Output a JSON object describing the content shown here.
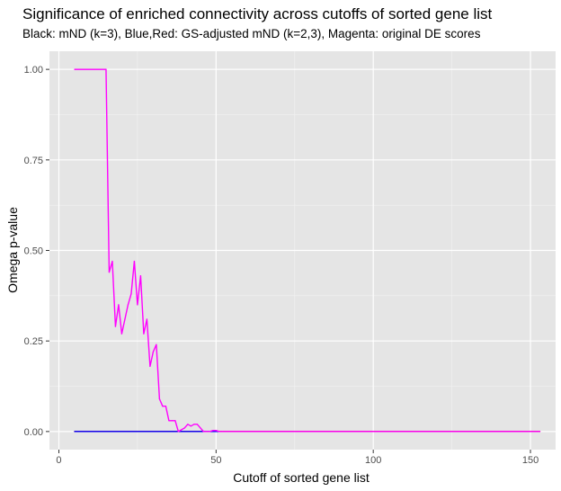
{
  "chart_data": {
    "type": "line",
    "title": "Significance of enriched connectivity across cutoffs of sorted gene list",
    "subtitle": "Black: mND (k=3), Blue,Red: GS-adjusted mND (k=2,3), Magenta: original DE scores",
    "xlabel": "Cutoff of sorted gene list",
    "ylabel": "Omega p-value",
    "xlim": [
      -3,
      158
    ],
    "ylim": [
      -0.05,
      1.05
    ],
    "xticks": [
      0,
      50,
      100,
      150
    ],
    "xtick_labels": [
      "0",
      "50",
      "100",
      "150"
    ],
    "yticks": [
      0,
      0.25,
      0.5,
      0.75,
      1.0
    ],
    "ytick_labels": [
      "0.00",
      "0.25",
      "0.50",
      "0.75",
      "1.00"
    ],
    "grid": true,
    "background": "#e5e5e5",
    "series": [
      {
        "color": "#000000",
        "x": [
          5,
          153
        ],
        "y": [
          0,
          0
        ]
      },
      {
        "color": "#ff0000",
        "x": [
          5,
          153
        ],
        "y": [
          0,
          0
        ]
      },
      {
        "color": "#0000ff",
        "x": [
          5,
          51
        ],
        "y": [
          0,
          0
        ]
      },
      {
        "color": "#ff00ff",
        "x": [
          5,
          15,
          16,
          17,
          18,
          19,
          20,
          21,
          22,
          23,
          24,
          25,
          26,
          27,
          28,
          29,
          30,
          31,
          32,
          33,
          34,
          35,
          36,
          37,
          38,
          39,
          40,
          41,
          42,
          43,
          44,
          45,
          46,
          47,
          48,
          49,
          50,
          51,
          52,
          153
        ],
        "y": [
          1.0,
          1.0,
          0.44,
          0.47,
          0.29,
          0.35,
          0.27,
          0.31,
          0.35,
          0.38,
          0.47,
          0.35,
          0.43,
          0.27,
          0.31,
          0.18,
          0.22,
          0.24,
          0.09,
          0.07,
          0.07,
          0.03,
          0.03,
          0.03,
          0.0,
          0.005,
          0.01,
          0.02,
          0.015,
          0.02,
          0.02,
          0.01,
          0.0,
          0.0,
          0.0,
          0.003,
          0.003,
          0.0,
          0.0,
          0.0
        ]
      }
    ]
  }
}
